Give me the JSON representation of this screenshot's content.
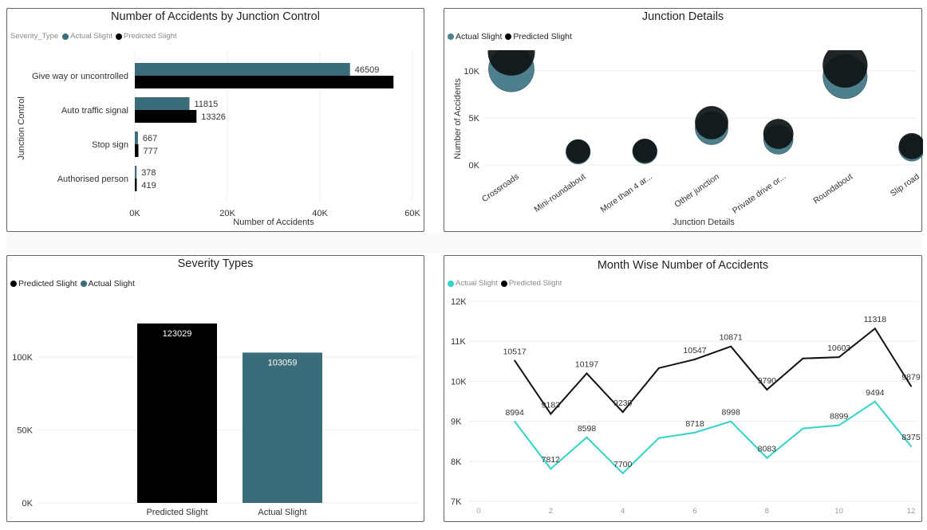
{
  "colors": {
    "actual": "#3b6c79",
    "predicted": "#000000",
    "actual_bubble": "#4d7f8c",
    "predicted_bubble": "#0d1214",
    "actual_line": "#30d5c8",
    "predicted_line": "#111111",
    "grid": "#eeeeee",
    "axis_text": "#333333"
  },
  "chart_data": [
    {
      "id": "junction-control",
      "type": "bar",
      "orientation": "horizontal",
      "title": "Number of Accidents by Junction Control",
      "legend_title": "Severity_Type",
      "legend": [
        "Actual Slight",
        "Predicted Slight"
      ],
      "xlabel": "Number of Accidents",
      "ylabel": "Junction Control",
      "categories": [
        "Give way or uncontrolled",
        "Auto traffic signal",
        "Stop sign",
        "Authorised person"
      ],
      "series": [
        {
          "name": "Actual Slight",
          "values": [
            46509,
            11815,
            667,
            378
          ],
          "labels": [
            "46509",
            "11815",
            "667",
            "378"
          ]
        },
        {
          "name": "Predicted Slight",
          "values": [
            55900,
            13326,
            777,
            419
          ],
          "labels": [
            "",
            "13326",
            "777",
            "419"
          ]
        }
      ],
      "xlim": [
        0,
        60000
      ],
      "xticks": [
        0,
        20000,
        40000,
        60000
      ],
      "xtick_labels": [
        "0K",
        "20K",
        "40K",
        "60K"
      ],
      "grid": true,
      "legend_position": "top-left"
    },
    {
      "id": "junction-details",
      "type": "scatter",
      "subtype": "bubble",
      "title": "Junction Details",
      "legend": [
        "Actual Slight",
        "Predicted Slight"
      ],
      "xlabel": "Junction Details",
      "ylabel": "Number of Accidents",
      "categories": [
        "Crossroads",
        "Mini-roundabout",
        "More than 4 ar...",
        "Other junction",
        "Private drive or...",
        "Roundabout",
        "Slip road"
      ],
      "series": [
        {
          "name": "Actual Slight",
          "values": [
            10200,
            1400,
            1450,
            3900,
            2700,
            9400,
            1800
          ]
        },
        {
          "name": "Predicted Slight",
          "values": [
            12000,
            1450,
            1500,
            4500,
            3300,
            10600,
            2000
          ]
        }
      ],
      "ylim": [
        0,
        12000
      ],
      "yticks": [
        0,
        5000,
        10000
      ],
      "ytick_labels": [
        "0K",
        "5K",
        "10K"
      ],
      "grid": true,
      "legend_position": "top-left"
    },
    {
      "id": "severity-types",
      "type": "bar",
      "orientation": "vertical",
      "title": "Severity Types",
      "legend": [
        "Predicted Slight",
        "Actual Slight"
      ],
      "xlabel": "",
      "ylabel": "",
      "categories": [
        "Predicted Slight",
        "Actual Slight"
      ],
      "values": [
        123029,
        103059
      ],
      "labels": [
        "123029",
        "103059"
      ],
      "ylim": [
        0,
        150000
      ],
      "yticks": [
        0,
        50000,
        100000
      ],
      "ytick_labels": [
        "0K",
        "50K",
        "100K"
      ],
      "grid": true,
      "legend_position": "top-left"
    },
    {
      "id": "month-wise",
      "type": "line",
      "title": "Month Wise Number of Accidents",
      "legend": [
        "Actual Slight",
        "Predicted Slight"
      ],
      "xlabel": "",
      "ylabel": "",
      "x": [
        1,
        2,
        3,
        4,
        5,
        6,
        7,
        8,
        9,
        10,
        11,
        12
      ],
      "series": [
        {
          "name": "Actual Slight",
          "values": [
            8994,
            7812,
            8598,
            7700,
            8580,
            8718,
            8998,
            8083,
            8820,
            8899,
            9494,
            8375
          ],
          "labels": [
            "8994",
            "7812",
            "8598",
            "7700",
            "",
            "8718",
            "8998",
            "8083",
            "",
            "8899",
            "9494",
            "8375"
          ]
        },
        {
          "name": "Predicted Slight",
          "values": [
            10517,
            9183,
            10197,
            9230,
            10330,
            10547,
            10871,
            9790,
            10570,
            10603,
            11318,
            9879
          ],
          "labels": [
            "10517",
            "9183",
            "10197",
            "9230",
            "",
            "10547",
            "10871",
            "9790",
            "",
            "10603",
            "11318",
            "9879"
          ]
        }
      ],
      "xlim": [
        0,
        12
      ],
      "xticks": [
        0,
        2,
        4,
        6,
        8,
        10,
        12
      ],
      "xtick_labels": [
        "0",
        "2",
        "4",
        "6",
        "8",
        "10",
        "12"
      ],
      "ylim": [
        7000,
        12000
      ],
      "yticks": [
        7000,
        8000,
        9000,
        10000,
        11000,
        12000
      ],
      "ytick_labels": [
        "7K",
        "8K",
        "9K",
        "10K",
        "11K",
        "12K"
      ],
      "grid": true,
      "legend_position": "top-left"
    }
  ]
}
